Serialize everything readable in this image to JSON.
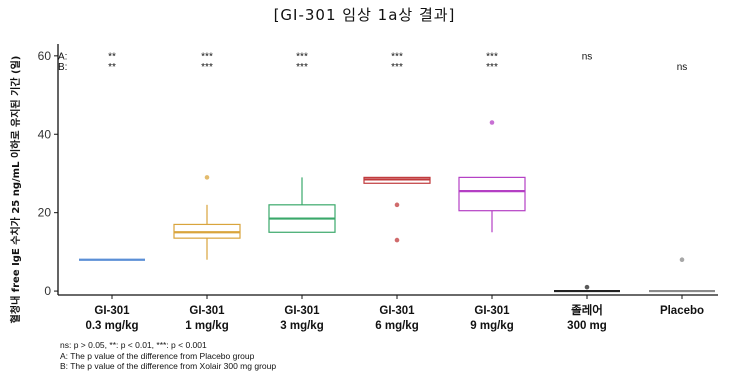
{
  "chart_data": {
    "type": "box",
    "title": "[GI-301 임상 1a상 결과]",
    "ylabel": "혈청내 free IgE 수치가 25 ng/mL 이하로 유지된 기간 (일)",
    "xlabel": "",
    "ylim": [
      -1,
      62
    ],
    "yticks": [
      0,
      20,
      40,
      60
    ],
    "grid": false,
    "significance_row_labels": [
      "A:",
      "B:"
    ],
    "categories": [
      {
        "line1": "GI-301",
        "line2": "0.3 mg/kg",
        "color": "#5b8fd6",
        "q1": 8,
        "median": 8,
        "q3": 8,
        "whisker_low": 8,
        "whisker_high": 8,
        "outliers": [],
        "sig_a": "**",
        "sig_b": "**"
      },
      {
        "line1": "GI-301",
        "line2": "1 mg/kg",
        "color": "#d9a43c",
        "q1": 13.5,
        "median": 15,
        "q3": 17,
        "whisker_low": 8,
        "whisker_high": 22,
        "outliers": [
          29
        ],
        "sig_a": "***",
        "sig_b": "***"
      },
      {
        "line1": "GI-301",
        "line2": "3 mg/kg",
        "color": "#3aa86a",
        "q1": 15,
        "median": 18.5,
        "q3": 22,
        "whisker_low": 15,
        "whisker_high": 29,
        "outliers": [],
        "sig_a": "***",
        "sig_b": "***"
      },
      {
        "line1": "GI-301",
        "line2": "6 mg/kg",
        "color": "#c0393b",
        "q1": 27.5,
        "median": 28.5,
        "q3": 29,
        "whisker_low": 27.5,
        "whisker_high": 29,
        "outliers": [
          22,
          13
        ],
        "sig_a": "***",
        "sig_b": "***"
      },
      {
        "line1": "GI-301",
        "line2": "9 mg/kg",
        "color": "#b43fc4",
        "q1": 20.5,
        "median": 25.5,
        "q3": 29,
        "whisker_low": 15,
        "whisker_high": 29,
        "outliers": [
          43
        ],
        "sig_a": "***",
        "sig_b": "***"
      },
      {
        "line1": "졸레어",
        "line2": "300 mg",
        "color": "#222222",
        "q1": 0,
        "median": 0,
        "q3": 0,
        "whisker_low": 0,
        "whisker_high": 0,
        "outliers": [
          1
        ],
        "sig_a": "ns",
        "sig_b": ""
      },
      {
        "line1": "Placebo",
        "line2": "",
        "color": "#8a8a8a",
        "q1": 0,
        "median": 0,
        "q3": 0,
        "whisker_low": 0,
        "whisker_high": 0,
        "outliers": [
          8
        ],
        "sig_a": "",
        "sig_b": "ns"
      }
    ],
    "footnotes": [
      "ns: p > 0.05, **: p < 0.01, ***: p < 0.001",
      "A: The p value of the difference from Placebo group",
      "B: The p value of the difference from Xolair 300 mg group"
    ]
  }
}
